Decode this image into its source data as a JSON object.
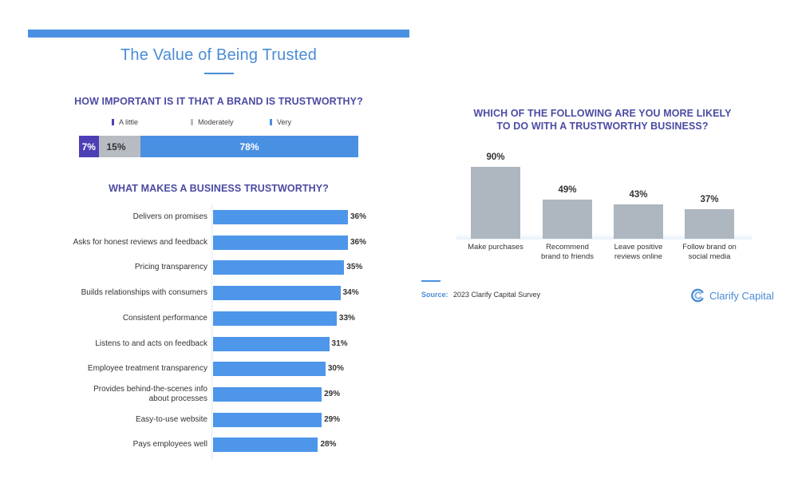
{
  "header": {
    "title": "The Value of Being Trusted"
  },
  "colors": {
    "brand_blue": "#4a90e2",
    "heading_purple": "#4b4ba3",
    "a_little": "#4c3fb5",
    "moderately": "#b6bcc2",
    "very": "#4a90e2",
    "hbar": "#4d96ea",
    "vbar": "#aeb7bf"
  },
  "footer": {
    "source_label": "Source:",
    "source_text": "2023 Clarify Capital Survey",
    "brand_name": "Clarify Capital",
    "brand_icon": "clarify-capital-logo-icon"
  },
  "chart_data": [
    {
      "type": "bar",
      "orientation": "horizontal-stacked",
      "title": "HOW IMPORTANT IS IT THAT A BRAND IS TRUSTWORTHY?",
      "legend": [
        "A little",
        "Moderately",
        "Very"
      ],
      "legend_position": "top",
      "series": [
        {
          "name": "A little",
          "value": 7,
          "label": "7%"
        },
        {
          "name": "Moderately",
          "value": 15,
          "label": "15%"
        },
        {
          "name": "Very",
          "value": 78,
          "label": "78%"
        }
      ],
      "xlim": [
        0,
        100
      ]
    },
    {
      "type": "bar",
      "orientation": "horizontal",
      "title": "WHAT MAKES A BUSINESS TRUSTWORTHY?",
      "categories": [
        "Delivers on promises",
        "Asks for honest reviews and feedback",
        "Pricing transparency",
        "Builds relationships with consumers",
        "Consistent performance",
        "Listens to and acts on feedback",
        "Employee treatment transparency",
        "Provides behind-the-scenes info about processes",
        "Easy-to-use website",
        "Pays employees well"
      ],
      "category_lines": [
        [
          "Delivers on promises"
        ],
        [
          "Asks for honest reviews and feedback"
        ],
        [
          "Pricing transparency"
        ],
        [
          "Builds relationships with consumers"
        ],
        [
          "Consistent performance"
        ],
        [
          "Listens to and acts on feedback"
        ],
        [
          "Employee treatment transparency"
        ],
        [
          "Provides behind-the-scenes info",
          "about processes"
        ],
        [
          "Easy-to-use website"
        ],
        [
          "Pays employees well"
        ]
      ],
      "values": [
        36,
        36,
        35,
        34,
        33,
        31,
        30,
        29,
        29,
        28
      ],
      "labels": [
        "36%",
        "36%",
        "35%",
        "34%",
        "33%",
        "31%",
        "30%",
        "29%",
        "29%",
        "28%"
      ],
      "unit": "%"
    },
    {
      "type": "bar",
      "orientation": "vertical",
      "title": "WHICH OF THE FOLLOWING ARE YOU MORE LIKELY TO DO WITH A TRUSTWORTHY BUSINESS?",
      "title_lines": [
        "WHICH OF THE FOLLOWING ARE YOU MORE LIKELY",
        "TO DO WITH A TRUSTWORTHY BUSINESS?"
      ],
      "categories": [
        "Make purchases",
        "Recommend brand to friends",
        "Leave positive reviews online",
        "Follow brand on social media"
      ],
      "category_lines": [
        [
          "Make purchases"
        ],
        [
          "Recommend",
          "brand to friends"
        ],
        [
          "Leave positive",
          "reviews online"
        ],
        [
          "Follow brand on",
          "social media"
        ]
      ],
      "values": [
        90,
        49,
        43,
        37
      ],
      "labels": [
        "90%",
        "49%",
        "43%",
        "37%"
      ],
      "unit": "%"
    }
  ]
}
